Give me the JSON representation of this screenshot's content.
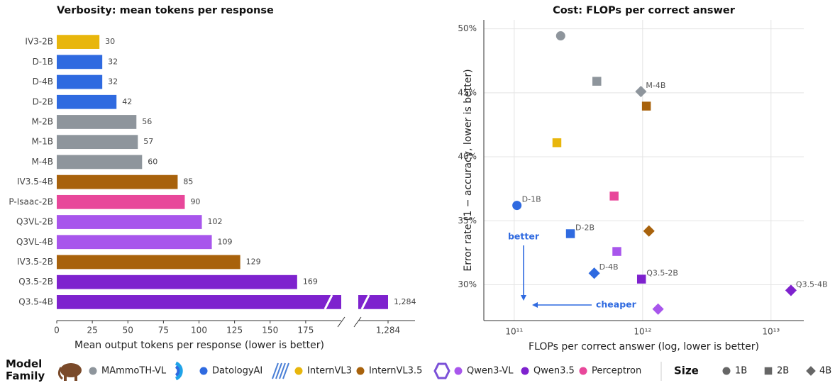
{
  "chart_data": [
    {
      "type": "bar",
      "orientation": "horizontal",
      "title": "Verbosity: mean tokens per response",
      "xlabel": "Mean output tokens per response (lower is better)",
      "categories": [
        "IV3-2B",
        "D-1B",
        "D-4B",
        "D-2B",
        "M-2B",
        "M-1B",
        "M-4B",
        "IV3.5-4B",
        "P-Isaac-2B",
        "Q3VL-2B",
        "Q3VL-4B",
        "IV3.5-2B",
        "Q3.5-2B",
        "Q3.5-4B"
      ],
      "values": [
        30,
        32,
        32,
        42,
        56,
        57,
        60,
        85,
        90,
        102,
        109,
        129,
        169,
        1284
      ],
      "value_labels": [
        "30",
        "32",
        "32",
        "42",
        "56",
        "57",
        "60",
        "85",
        "90",
        "102",
        "109",
        "129",
        "169",
        "1,284"
      ],
      "colors": [
        "#e8b60c",
        "#2f6ae0",
        "#2f6ae0",
        "#2f6ae0",
        "#8e959c",
        "#8e959c",
        "#8e959c",
        "#a8620c",
        "#e8479a",
        "#a856ec",
        "#a856ec",
        "#a8620c",
        "#7e22ce",
        "#7e22ce"
      ],
      "xlim": [
        0,
        200
      ],
      "xlim_after_break": [
        1263,
        1303
      ],
      "xticks": [
        0,
        25,
        50,
        75,
        100,
        125,
        150,
        175,
        {
          "value": 1284,
          "label": "1,284"
        }
      ]
    },
    {
      "type": "scatter",
      "title": "Cost: FLOPs per correct answer",
      "xlabel": "FLOPs per correct answer (log, lower is better)",
      "ylabel": "Error rate (1 − accuracy, lower is better)",
      "xscale": "log",
      "grid": true,
      "xlim": [
        58000000000,
        18000000000000
      ],
      "xticks": [
        {
          "value": 100000000000,
          "label": "10¹¹"
        },
        {
          "value": 1000000000000,
          "label": "10¹²"
        },
        {
          "value": 10000000000000,
          "label": "10¹³"
        }
      ],
      "ylim": [
        27.2,
        50.7
      ],
      "yticks": [
        {
          "value": 30,
          "label": "30%"
        },
        {
          "value": 35,
          "label": "35%"
        },
        {
          "value": 40,
          "label": "40%"
        },
        {
          "value": 45,
          "label": "45%"
        },
        {
          "value": 50,
          "label": "50%"
        }
      ],
      "points": [
        {
          "x": 230000000000,
          "y": 49.45,
          "color": "#8e959c",
          "marker": "circle"
        },
        {
          "x": 440000000000,
          "y": 45.9,
          "color": "#8e959c",
          "marker": "square"
        },
        {
          "x": 970000000000,
          "y": 45.1,
          "color": "#8e959c",
          "marker": "diamond",
          "label": "M-4B"
        },
        {
          "x": 1070000000000,
          "y": 43.96,
          "color": "#a8620c",
          "marker": "square"
        },
        {
          "x": 215000000000,
          "y": 41.1,
          "color": "#e8b60c",
          "marker": "square"
        },
        {
          "x": 600000000000,
          "y": 36.93,
          "color": "#e8479a",
          "marker": "square"
        },
        {
          "x": 105000000000,
          "y": 36.2,
          "color": "#2f6ae0",
          "marker": "circle",
          "label": "D-1B"
        },
        {
          "x": 274000000000,
          "y": 33.99,
          "color": "#2f6ae0",
          "marker": "square",
          "label": "D-2B"
        },
        {
          "x": 1120000000000,
          "y": 34.2,
          "color": "#a8620c",
          "marker": "diamond"
        },
        {
          "x": 630000000000,
          "y": 32.6,
          "color": "#a856ec",
          "marker": "square"
        },
        {
          "x": 420000000000,
          "y": 30.9,
          "color": "#2f6ae0",
          "marker": "diamond",
          "label": "D-4B"
        },
        {
          "x": 980000000000,
          "y": 30.44,
          "color": "#7e22ce",
          "marker": "square",
          "label": "Q3.5-2B"
        },
        {
          "x": 14300000000000,
          "y": 29.56,
          "color": "#7e22ce",
          "marker": "diamond",
          "label": "Q3.5-4B"
        },
        {
          "x": 1320000000000,
          "y": 28.1,
          "color": "#a856ec",
          "marker": "diamond"
        }
      ],
      "annotations": [
        "better",
        "cheaper"
      ]
    }
  ],
  "legend": {
    "title": "Model Family",
    "families": [
      {
        "name": "MAmmoTH-VL",
        "color": "#8e959c"
      },
      {
        "name": "DatologyAI",
        "color": "#2f6ae0"
      },
      {
        "name": "InternVL3",
        "color": "#e8b60c"
      },
      {
        "name": "InternVL3.5",
        "color": "#a8620c"
      },
      {
        "name": "Qwen3-VL",
        "color": "#a856ec"
      },
      {
        "name": "Qwen3.5",
        "color": "#7e22ce"
      },
      {
        "name": "Perceptron",
        "color": "#e8479a"
      }
    ],
    "size_title": "Size",
    "sizes": [
      {
        "name": "1B",
        "marker": "circle"
      },
      {
        "name": "2B",
        "marker": "square"
      },
      {
        "name": "4B",
        "marker": "diamond"
      }
    ]
  }
}
